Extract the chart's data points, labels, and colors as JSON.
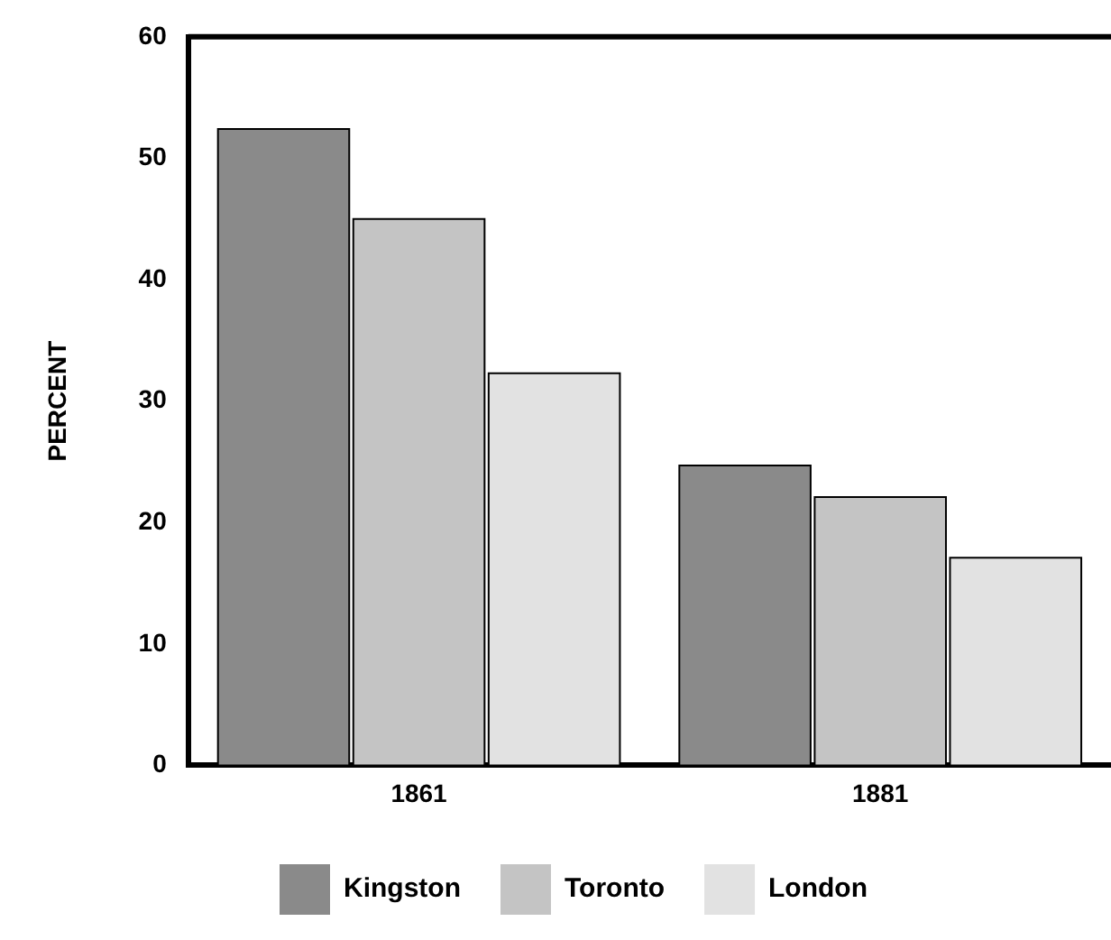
{
  "chart_data": {
    "type": "bar",
    "ylabel": "PERCENT",
    "categories": [
      "1861",
      "1881"
    ],
    "series": [
      {
        "name": "Kingston",
        "color": "#8a8a8a",
        "values": [
          52.4,
          24.7
        ]
      },
      {
        "name": "Toronto",
        "color": "#c4c4c4",
        "values": [
          45,
          22.1
        ]
      },
      {
        "name": "London",
        "color": "#e2e2e2",
        "values": [
          32.3,
          17.1
        ]
      }
    ],
    "ylim": [
      0,
      60
    ],
    "yticks": [
      0,
      10,
      20,
      30,
      40,
      50,
      60
    ],
    "grid": false,
    "legend": "bottom"
  }
}
